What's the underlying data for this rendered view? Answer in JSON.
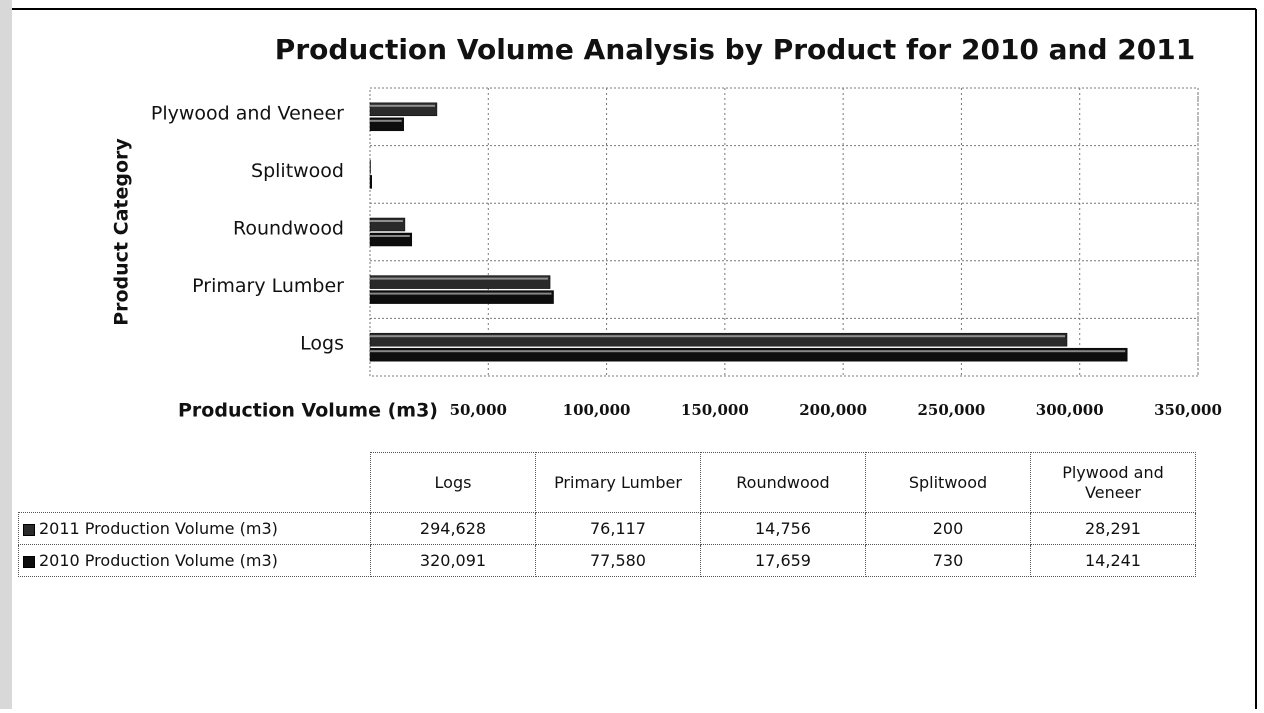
{
  "chart_data": {
    "type": "barh",
    "title": "Production Volume Analysis by Product for 2010 and 2011",
    "y_label": "Product Category",
    "x_label": "Production Volume (m3)",
    "categories": [
      "Logs",
      "Primary Lumber",
      "Roundwood",
      "Splitwood",
      "Plywood and Veneer"
    ],
    "series": [
      {
        "name": "2011 Production Volume (m3)",
        "color": "#2a2a2a",
        "values": [
          294628,
          76117,
          14756,
          200,
          28291
        ],
        "value_labels": [
          "294,628",
          "76,117",
          "14,756",
          "200",
          "28,291"
        ]
      },
      {
        "name": "2010 Production Volume (m3)",
        "color": "#0d0d0d",
        "values": [
          320091,
          77580,
          17659,
          730,
          14241
        ],
        "value_labels": [
          "320,091",
          "77,580",
          "17,659",
          "730",
          "14,241"
        ]
      }
    ],
    "xlim": [
      0,
      350000
    ],
    "xticks": [
      {
        "value": 50000,
        "label": "50,000"
      },
      {
        "value": 100000,
        "label": "100,000"
      },
      {
        "value": 150000,
        "label": "150,000"
      },
      {
        "value": 200000,
        "label": "200,000"
      },
      {
        "value": 250000,
        "label": "250,000"
      },
      {
        "value": 300000,
        "label": "300,000"
      },
      {
        "value": 350000,
        "label": "350,000"
      }
    ],
    "grid": true
  }
}
